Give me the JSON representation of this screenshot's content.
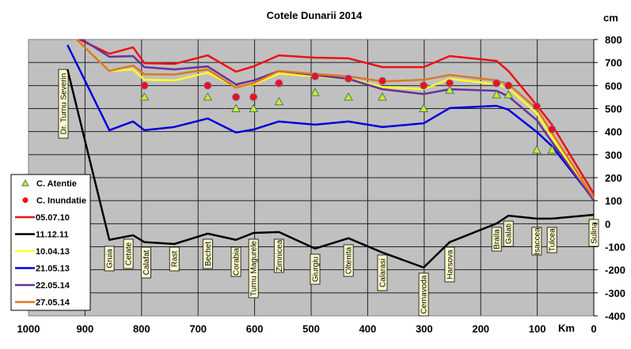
{
  "chart_data": {
    "type": "line",
    "title": "Cotele Dunarii 2014",
    "ylabel": "cm",
    "xlabel": "Km",
    "xlim": [
      1000,
      0
    ],
    "ylim": [
      -400,
      800
    ],
    "grid": true,
    "legend_position": "left",
    "x_ticks": [
      "1000",
      "900",
      "800",
      "700",
      "600",
      "500",
      "400",
      "300",
      "200",
      "100",
      "0"
    ],
    "y_ticks": [
      "800",
      "700",
      "600",
      "500",
      "400",
      "300",
      "200",
      "100",
      "0",
      "-100",
      "-200",
      "-300",
      "-400"
    ],
    "stations": [
      {
        "name": "Dr. Turnu Severin",
        "km": 931
      },
      {
        "name": "Gruia",
        "km": 857
      },
      {
        "name": "Cetate",
        "km": 815
      },
      {
        "name": "Calafat",
        "km": 795
      },
      {
        "name": "Rast",
        "km": 742
      },
      {
        "name": "Bechet",
        "km": 683
      },
      {
        "name": "Corabia",
        "km": 633
      },
      {
        "name": "Turnu Magurele",
        "km": 602
      },
      {
        "name": "Zimnicea",
        "km": 557
      },
      {
        "name": "Giurgiu",
        "km": 493
      },
      {
        "name": "Oltenita",
        "km": 434
      },
      {
        "name": "Calarasi",
        "km": 374
      },
      {
        "name": "Cernavoda",
        "km": 301
      },
      {
        "name": "Harsova",
        "km": 255
      },
      {
        "name": "Braila",
        "km": 172
      },
      {
        "name": "Galati",
        "km": 151
      },
      {
        "name": "Isaccea",
        "km": 101
      },
      {
        "name": "Tulcea",
        "km": 74
      },
      {
        "name": "Sulina",
        "km": 0
      }
    ],
    "markers": [
      {
        "name": "C. Atentie",
        "shape": "triangle",
        "color": "#ccee22",
        "km": [
          795,
          683,
          633,
          602,
          557,
          493,
          434,
          374,
          301,
          255,
          172,
          151,
          101,
          74
        ],
        "values": [
          550,
          550,
          500,
          500,
          530,
          570,
          550,
          550,
          500,
          580,
          560,
          560,
          320,
          320
        ]
      },
      {
        "name": "C. Inundatie",
        "shape": "circle",
        "color": "#ee1111",
        "km": [
          795,
          683,
          633,
          602,
          557,
          493,
          434,
          374,
          301,
          255,
          172,
          151,
          101,
          74
        ],
        "values": [
          600,
          600,
          550,
          550,
          610,
          640,
          630,
          620,
          600,
          610,
          610,
          600,
          510,
          410
        ]
      }
    ],
    "series": [
      {
        "name": "05.07.10",
        "color": "#ee1111",
        "km": [
          910,
          857,
          815,
          795,
          742,
          683,
          633,
          602,
          557,
          493,
          434,
          374,
          301,
          255,
          172,
          151,
          101,
          74,
          0
        ],
        "values": [
          800,
          738,
          766,
          697,
          694,
          731,
          660,
          683,
          731,
          721,
          718,
          680,
          680,
          728,
          707,
          663,
          515,
          430,
          130
        ]
      },
      {
        "name": "11.12.11",
        "color": "#000000",
        "km": [
          931,
          857,
          815,
          795,
          742,
          683,
          633,
          602,
          557,
          493,
          434,
          374,
          301,
          255,
          172,
          151,
          101,
          74,
          0
        ],
        "values": [
          670,
          -70,
          -50,
          -80,
          -88,
          -43,
          -70,
          -40,
          -36,
          -108,
          -63,
          -125,
          -190,
          -80,
          1,
          35,
          22,
          22,
          39
        ]
      },
      {
        "name": "10.04.13",
        "color": "#ffff22",
        "km": [
          915,
          857,
          815,
          795,
          742,
          683,
          633,
          602,
          557,
          493,
          434,
          374,
          301,
          255,
          172,
          151,
          101,
          74,
          0
        ],
        "values": [
          800,
          663,
          670,
          625,
          622,
          656,
          594,
          605,
          652,
          640,
          629,
          594,
          584,
          629,
          606,
          588,
          480,
          375,
          105
        ]
      },
      {
        "name": "21.05.13",
        "color": "#0000dd",
        "km": [
          931,
          857,
          815,
          795,
          742,
          683,
          633,
          602,
          557,
          493,
          434,
          374,
          301,
          255,
          172,
          151,
          101,
          74,
          0
        ],
        "values": [
          776,
          406,
          444,
          406,
          420,
          457,
          396,
          409,
          444,
          430,
          444,
          420,
          436,
          502,
          512,
          495,
          399,
          337,
          104
        ]
      },
      {
        "name": "22.05.14",
        "color": "#663399",
        "km": [
          905,
          857,
          815,
          795,
          742,
          683,
          633,
          602,
          557,
          493,
          434,
          374,
          301,
          255,
          172,
          151,
          101,
          74,
          0
        ],
        "values": [
          800,
          725,
          728,
          680,
          670,
          683,
          605,
          622,
          663,
          645,
          629,
          584,
          563,
          584,
          577,
          553,
          450,
          355,
          100
        ]
      },
      {
        "name": "27.05.14",
        "color": "#dd7722",
        "km": [
          915,
          857,
          815,
          795,
          742,
          683,
          633,
          602,
          557,
          493,
          434,
          374,
          301,
          255,
          172,
          151,
          101,
          74,
          0
        ],
        "values": [
          800,
          663,
          687,
          649,
          648,
          670,
          591,
          610,
          663,
          650,
          640,
          618,
          625,
          646,
          622,
          606,
          500,
          395,
          110
        ]
      }
    ]
  }
}
